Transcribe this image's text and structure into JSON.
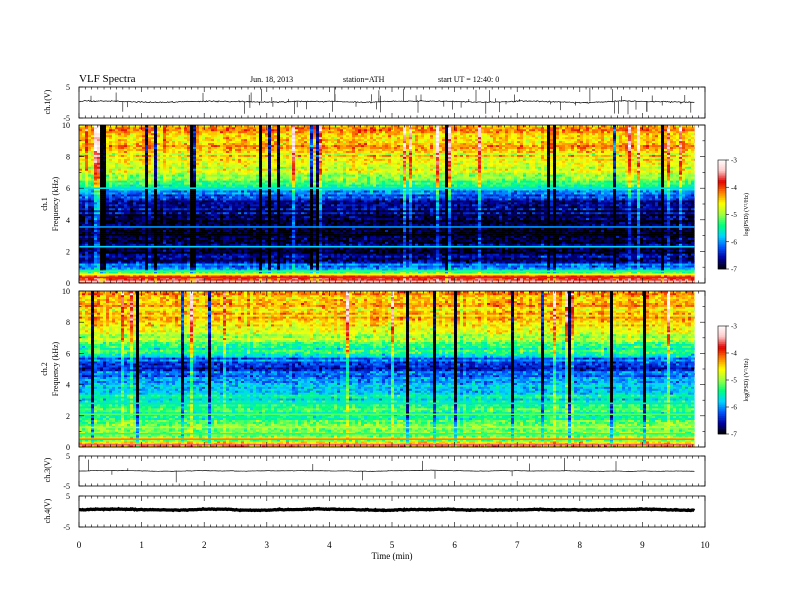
{
  "header": {
    "title": "VLF  Spectra",
    "date": "Jun. 18, 2013",
    "station": "station=ATH",
    "start_ut": "start  UT  =    12:40: 0"
  },
  "chart_data": [
    {
      "type": "line",
      "panel": "ch1-waveform",
      "ylabel": "ch.1(V)",
      "ylim": [
        -5,
        5
      ],
      "yticks": [
        "5",
        "-5"
      ],
      "baseline": 0.3,
      "noise_amplitude": 0.35,
      "spike_count": 60
    },
    {
      "type": "heatmap",
      "panel": "ch1-spectrogram",
      "ylabel_lines": [
        "ch.1",
        "Frequency  (kHz)"
      ],
      "ylim": [
        0,
        10
      ],
      "yticks": [
        "0",
        "2",
        "4",
        "6",
        "8",
        "10"
      ],
      "colorbar": {
        "label": "log(PSD) (V²/Hz)",
        "range": [
          -7,
          -3
        ],
        "ticks": [
          "-3",
          "-4",
          "-5",
          "-6",
          "-7"
        ]
      },
      "profile": [
        {
          "f": 0.0,
          "v": -3.6
        },
        {
          "f": 0.4,
          "v": -3.8
        },
        {
          "f": 0.8,
          "v": -5.8
        },
        {
          "f": 1.5,
          "v": -6.7
        },
        {
          "f": 3.0,
          "v": -6.9
        },
        {
          "f": 4.5,
          "v": -6.8
        },
        {
          "f": 5.5,
          "v": -6.3
        },
        {
          "f": 6.3,
          "v": -5.4
        },
        {
          "f": 7.0,
          "v": -4.8
        },
        {
          "f": 8.5,
          "v": -4.4
        },
        {
          "f": 10.0,
          "v": -4.3
        }
      ],
      "bands": [
        {
          "f": 0.1,
          "v": -3.4
        },
        {
          "f": 0.35,
          "v": -3.9
        },
        {
          "f": 0.55,
          "v": -4.6
        },
        {
          "f": 0.75,
          "v": -5.3
        },
        {
          "f": 2.3,
          "v": -5.8
        },
        {
          "f": 3.55,
          "v": -6.0
        },
        {
          "f": 6.0,
          "v": -5.7
        }
      ]
    },
    {
      "type": "heatmap",
      "panel": "ch2-spectrogram",
      "ylabel_lines": [
        "ch.2",
        "Frequency  (kHz)"
      ],
      "ylim": [
        0,
        10
      ],
      "yticks": [
        "0",
        "2",
        "4",
        "6",
        "8",
        "10"
      ],
      "colorbar": {
        "label": "log(PSD) (V²/Hz)",
        "range": [
          -7,
          -3
        ],
        "ticks": [
          "-3",
          "-4",
          "-5",
          "-6",
          "-7"
        ]
      },
      "profile": [
        {
          "f": 0.0,
          "v": -4.0
        },
        {
          "f": 0.4,
          "v": -4.8
        },
        {
          "f": 1.0,
          "v": -5.1
        },
        {
          "f": 3.0,
          "v": -5.5
        },
        {
          "f": 4.6,
          "v": -6.1
        },
        {
          "f": 5.3,
          "v": -6.6
        },
        {
          "f": 6.0,
          "v": -5.6
        },
        {
          "f": 7.0,
          "v": -4.9
        },
        {
          "f": 8.5,
          "v": -4.4
        },
        {
          "f": 10.0,
          "v": -4.3
        }
      ],
      "bands": [
        {
          "f": 0.15,
          "v": -3.6
        },
        {
          "f": 0.5,
          "v": -4.2
        },
        {
          "f": 0.85,
          "v": -5.3
        },
        {
          "f": 1.25,
          "v": -4.9
        },
        {
          "f": 2.1,
          "v": -5.2
        },
        {
          "f": 2.8,
          "v": -5.6
        }
      ]
    },
    {
      "type": "line",
      "panel": "ch3-waveform",
      "ylabel": "ch.3(V)",
      "ylim": [
        -5,
        5
      ],
      "yticks": [
        "5",
        "-5"
      ],
      "baseline": 0.0,
      "noise_amplitude": 0.08,
      "spike_count": 12
    },
    {
      "type": "line",
      "panel": "ch4-waveform",
      "ylabel": "ch.4(V)",
      "ylim": [
        -5,
        5
      ],
      "yticks": [
        "5",
        "-5"
      ],
      "baseline": 0.6,
      "noise_amplitude": 0.22,
      "spike_count": 0
    }
  ],
  "time_axis": {
    "xlabel": "Time  (min)",
    "xlim": [
      0,
      10
    ],
    "xticks": [
      "0",
      "1",
      "2",
      "3",
      "4",
      "5",
      "6",
      "7",
      "8",
      "9",
      "10"
    ],
    "data_end": 9.83
  },
  "colors": {
    "colormap": [
      "#000000",
      "#0000a0",
      "#0055ff",
      "#00d5ff",
      "#00ff7f",
      "#a0ff40",
      "#ffff00",
      "#ff8000",
      "#e00000",
      "#ffc8c8",
      "#ffffff"
    ]
  }
}
